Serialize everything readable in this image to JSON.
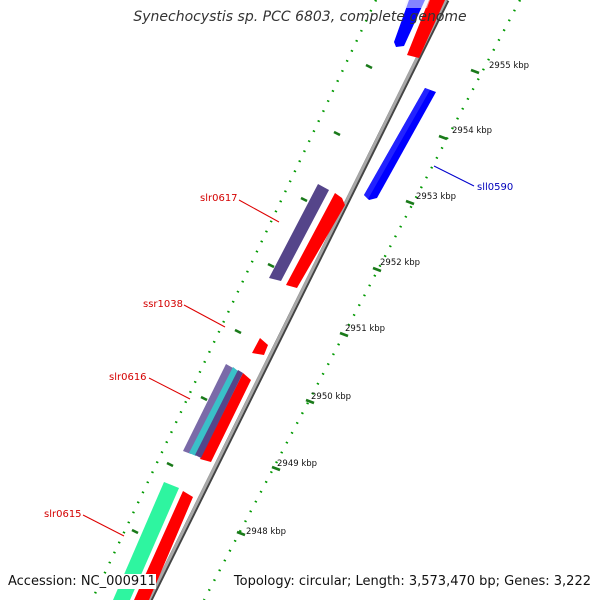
{
  "title": "Synechocystis sp. PCC 6803, complete genome",
  "accession_text": "Accession: NC_000911",
  "footer": {
    "topology_text": "Topology: circular; Length: 3,573,470 bp; Genes: 3,222"
  },
  "colors": {
    "backbone": "#9a9a9a",
    "forward_cds": "#ff0000",
    "reverse_cds": "#0000ff",
    "orf_forward_purple": "#55458a",
    "orf_forward_green": "#2ef5a0",
    "tick_dotted": "#009900",
    "tick_major": "#1a6a1a",
    "gene_label_forward": "#d40000",
    "gene_label_reverse": "#0000bb"
  },
  "kbp_labels": [
    "2955 kbp",
    "2954 kbp",
    "2953 kbp",
    "2952 kbp",
    "2951 kbp",
    "2950 kbp",
    "2949 kbp",
    "2948 kbp"
  ],
  "genes": [
    {
      "name": "sll0590",
      "strand": "reverse"
    },
    {
      "name": "slr0617",
      "strand": "forward"
    },
    {
      "name": "ssr1038",
      "strand": "forward"
    },
    {
      "name": "slr0616",
      "strand": "forward"
    },
    {
      "name": "slr0615",
      "strand": "forward"
    }
  ]
}
